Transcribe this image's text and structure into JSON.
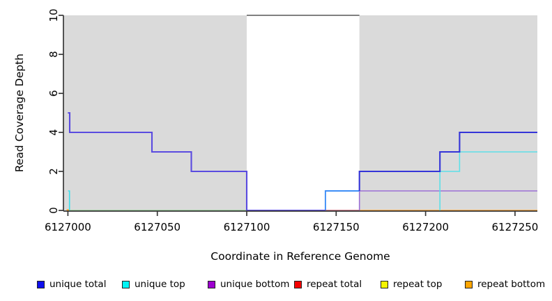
{
  "chart_data": {
    "type": "line",
    "title": "",
    "xlabel": "Coordinate in Reference Genome",
    "ylabel": "Read Coverage Depth",
    "xlim": [
      6126997.5,
      6127262.5
    ],
    "ylim": [
      0,
      10
    ],
    "grid": false,
    "legend_position": "bottom",
    "x_ticks": [
      6127000,
      6127050,
      6127100,
      6127150,
      6127200,
      6127250
    ],
    "x_tick_labels": [
      "6127000",
      "6127050",
      "6127100",
      "6127150",
      "6127200",
      "6127250"
    ],
    "y_ticks": [
      0,
      2,
      4,
      6,
      8,
      10
    ],
    "y_tick_labels": [
      "0",
      "2",
      "4",
      "6",
      "8",
      "10"
    ],
    "shaded_regions": [
      {
        "x0": 6126997.5,
        "x1": 6127100,
        "color": "#dadada"
      },
      {
        "x0": 6127163,
        "x1": 6127262.5,
        "color": "#dadada"
      }
    ],
    "gap_top_line": {
      "x0": 6127100,
      "x1": 6127163,
      "y": 10,
      "color": "#6e6e6e",
      "width": 1.8
    },
    "series": [
      {
        "name": "unique total",
        "color": "#0000EE",
        "steps": [
          [
            6127000,
            5
          ],
          [
            6127001,
            4
          ],
          [
            6127047,
            3
          ],
          [
            6127069,
            2
          ],
          [
            6127100,
            0
          ],
          [
            6127144,
            1
          ],
          [
            6127163,
            2
          ],
          [
            6127208,
            3
          ],
          [
            6127219,
            4
          ],
          [
            6127262,
            4
          ]
        ]
      },
      {
        "name": "unique top",
        "color": "#00F5F5",
        "steps": [
          [
            6127000,
            1
          ],
          [
            6127001,
            0
          ],
          [
            6127144,
            1
          ],
          [
            6127163,
            0
          ],
          [
            6127208,
            2
          ],
          [
            6127219,
            3
          ],
          [
            6127262,
            3
          ]
        ]
      },
      {
        "name": "unique bottom",
        "color": "#9D00CF",
        "steps": [
          [
            6127000,
            0
          ],
          [
            6127163,
            1
          ],
          [
            6127262,
            1
          ]
        ]
      },
      {
        "name": "repeat total",
        "color": "#F50000",
        "steps": [
          [
            6127000,
            0
          ],
          [
            6127262,
            0
          ]
        ]
      },
      {
        "name": "repeat top",
        "color": "#F5F500",
        "steps": [
          [
            6127000,
            0
          ],
          [
            6127262,
            0
          ]
        ]
      },
      {
        "name": "repeat bottom",
        "color": "#FFA500",
        "steps": [
          [
            6127000,
            0
          ],
          [
            6127262,
            0
          ]
        ]
      }
    ],
    "render_lines": [
      {
        "id": "overlap-top-zero-line",
        "color": "#8FCE8F",
        "width": 1.6,
        "points": [
          [
            6127000.8,
            0
          ],
          [
            6127100,
            0
          ]
        ]
      },
      {
        "id": "repeat-bottom-line",
        "color": "#FF9D1E",
        "width": 1.6,
        "points": [
          [
            6127163,
            0
          ],
          [
            6127262.5,
            0
          ]
        ]
      },
      {
        "id": "repeat-bottom-origin-dot",
        "color": "#FF9D1E",
        "width": 3.2,
        "points": [
          [
            6126999.3,
            0
          ],
          [
            6127001,
            0
          ]
        ]
      },
      {
        "id": "repeat-total-line",
        "color": "#C2596B",
        "width": 1.6,
        "points": [
          [
            6127144,
            0
          ],
          [
            6127163,
            0
          ]
        ]
      },
      {
        "id": "unique-bottom-line",
        "color": "#9B6FD6",
        "width": 1.6,
        "points": [
          [
            6127163,
            0
          ],
          [
            6127163,
            1
          ],
          [
            6127262.5,
            1
          ]
        ]
      },
      {
        "id": "unique-top-left-line",
        "color": "#3BDFEC",
        "width": 1.6,
        "points": [
          [
            6127000.1,
            1
          ],
          [
            6127000.9,
            1
          ],
          [
            6127000.9,
            0
          ]
        ]
      },
      {
        "id": "unique-top-right-line",
        "color": "#5CE0E8",
        "width": 1.6,
        "points": [
          [
            6127208,
            0
          ],
          [
            6127208,
            2
          ],
          [
            6127219,
            2
          ],
          [
            6127219,
            3
          ],
          [
            6127262.5,
            3
          ]
        ]
      },
      {
        "id": "overlap-total-top-line",
        "color": "#3E8EF7",
        "width": 1.9,
        "points": [
          [
            6127144,
            0
          ],
          [
            6127144,
            1
          ],
          [
            6127163,
            1
          ]
        ]
      },
      {
        "id": "unique-total-left-line",
        "color": "#5A4BE0",
        "width": 2.1,
        "points": [
          [
            6127000,
            5
          ],
          [
            6127001,
            5
          ],
          [
            6127001,
            4
          ],
          [
            6127047,
            4
          ],
          [
            6127047,
            3
          ],
          [
            6127069,
            3
          ],
          [
            6127069,
            2
          ],
          [
            6127100,
            2
          ],
          [
            6127100,
            0
          ],
          [
            6127144,
            0
          ]
        ]
      },
      {
        "id": "unique-total-right-line",
        "color": "#3434D8",
        "width": 2.1,
        "points": [
          [
            6127163,
            1
          ],
          [
            6127163,
            2
          ],
          [
            6127208,
            2
          ],
          [
            6127208,
            3
          ],
          [
            6127219,
            3
          ],
          [
            6127219,
            4
          ],
          [
            6127262.5,
            4
          ]
        ]
      }
    ]
  },
  "legend": {
    "items": [
      {
        "label": "unique total",
        "color": "#0F0FEE"
      },
      {
        "label": "unique top",
        "color": "#00F5F5"
      },
      {
        "label": "unique bottom",
        "color": "#9D00CF"
      },
      {
        "label": "repeat total",
        "color": "#F50000"
      },
      {
        "label": "repeat top",
        "color": "#F5F500"
      },
      {
        "label": "repeat bottom",
        "color": "#FFA500"
      }
    ]
  },
  "axis": {
    "color": "#383838"
  }
}
